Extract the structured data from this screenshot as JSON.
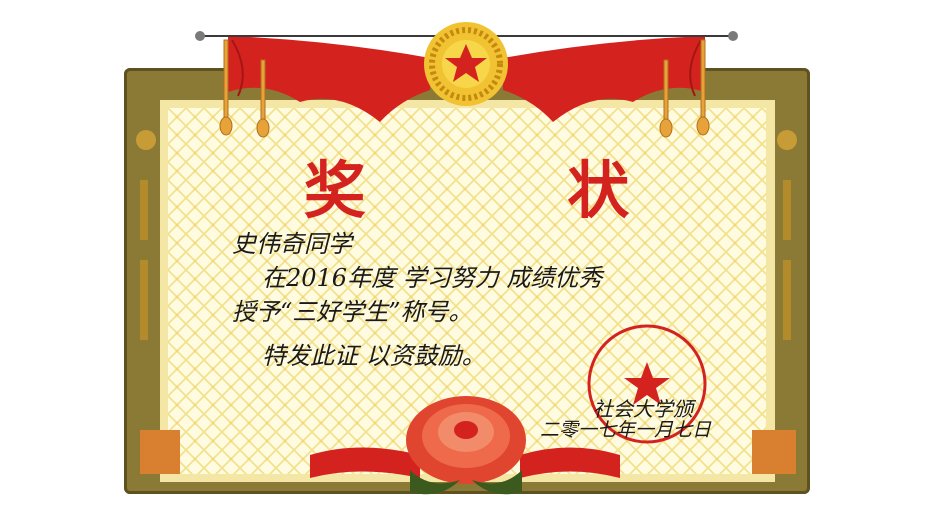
{
  "certificate": {
    "title": "奖 状",
    "recipient": "史伟奇同学",
    "body_line1": "在2016年度 学习努力 成绩优秀",
    "body_line2": "授予“三好学生”称号。",
    "body_line3": "特发此证 以资鼓励。",
    "issuer": "社会大学颁",
    "date": "二零一七年一月七日"
  },
  "seal": {
    "text": "社会大学",
    "color": "#d4231f"
  },
  "colors": {
    "frame": "#8a7a35",
    "accent_red": "#d4231f",
    "paper": "#fffbe0"
  }
}
